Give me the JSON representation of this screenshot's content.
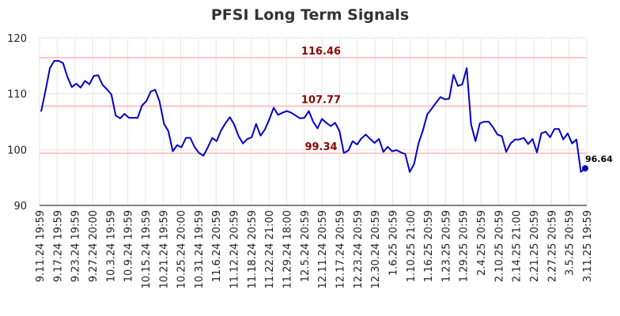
{
  "chart_data": {
    "type": "line",
    "title": "PFSI Long Term Signals",
    "xlabel": "",
    "ylabel": "",
    "ylim": [
      90,
      120
    ],
    "yticks": [
      90,
      100,
      110,
      120
    ],
    "grid": true,
    "x_ticks": [
      "9.11.24 19:59",
      "9.17.24 19:59",
      "9.23.24 19:59",
      "9.27.24 20:00",
      "10.3.24 19:59",
      "10.9.24 19:59",
      "10.15.24 19:59",
      "10.21.24 19:59",
      "10.25.24 20:00",
      "10.31.24 19:59",
      "11.6.24 20:59",
      "11.12.24 20:59",
      "11.18.24 20:59",
      "11.22.24 21:00",
      "11.29.24 18:00",
      "12.5.24 20:59",
      "12.11.24 20:59",
      "12.17.24 20:59",
      "12.23.24 20:59",
      "12.30.24 20:59",
      "1.6.25 20:59",
      "1.10.25 21:00",
      "1.16.25 20:59",
      "1.23.25 20:59",
      "1.29.25 20:59",
      "2.4.25 20:59",
      "2.10.25 20:59",
      "2.14.25 21:00",
      "2.21.25 20:59",
      "2.27.25 20:59",
      "3.5.25 20:59",
      "3.11.25 19:59"
    ],
    "series": [
      {
        "color": "#0000cc",
        "values": [
          106.8,
          110.5,
          114.6,
          115.9,
          115.9,
          115.5,
          113,
          111.2,
          111.8,
          111.1,
          112.3,
          111.7,
          113.2,
          113.3,
          111.6,
          110.8,
          109.9,
          106.1,
          105.6,
          106.4,
          105.7,
          105.7,
          105.7,
          107.9,
          108.7,
          110.4,
          110.7,
          108.6,
          104.6,
          103.3,
          99.7,
          100.8,
          100.4,
          102.1,
          102.1,
          100.4,
          99.4,
          98.9,
          100.4,
          102.1,
          101.5,
          103.4,
          104.7,
          105.8,
          104.5,
          102.4,
          101.1,
          101.9,
          102.2,
          104.6,
          102.5,
          103.6,
          105.4,
          107.5,
          106.2,
          106.6,
          106.9,
          106.6,
          106.1,
          105.6,
          105.7,
          106.9,
          105,
          103.8,
          105.5,
          104.8,
          104.2,
          104.8,
          103.3,
          99.4,
          99.8,
          101.5,
          100.9,
          102,
          102.7,
          101.9,
          101.2,
          101.9,
          99.6,
          100.5,
          99.7,
          99.9,
          99.5,
          99.2,
          96,
          97.4,
          101.1,
          103.4,
          106.3,
          107.3,
          108.4,
          109.4,
          109,
          109.1,
          113.4,
          111.4,
          111.7,
          114.6,
          104.5,
          101.5,
          104.7,
          105,
          105,
          104,
          102.7,
          102.4,
          99.6,
          101.1,
          101.8,
          101.8,
          102.1,
          101,
          101.9,
          99.5,
          102.9,
          103.2,
          102.2,
          103.7,
          103.7,
          101.8,
          102.9,
          101.1,
          101.8,
          96,
          96.64
        ]
      }
    ],
    "levels": [
      {
        "value": 116.46,
        "label": "116.46",
        "color": "#ffb3b3"
      },
      {
        "value": 107.77,
        "label": "107.77",
        "color": "#ffb3b3"
      },
      {
        "value": 99.34,
        "label": "99.34",
        "color": "#ffb3b3"
      }
    ],
    "last_point": {
      "value": 96.64,
      "label": "96.64"
    }
  }
}
